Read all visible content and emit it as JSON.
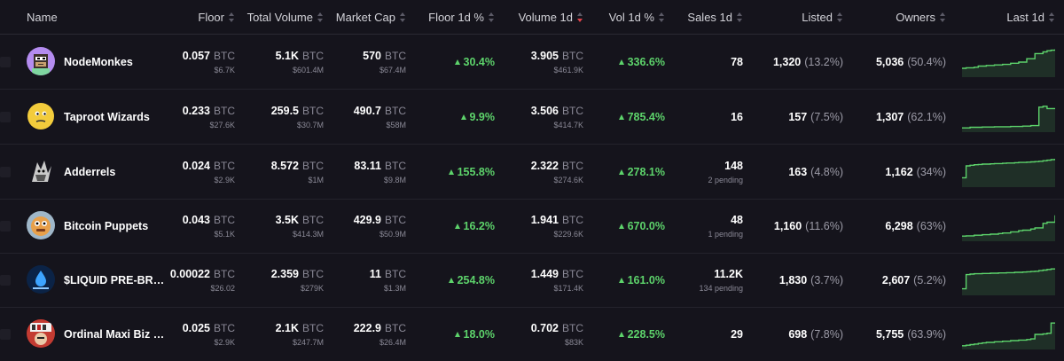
{
  "headers": {
    "name": "Name",
    "floor": "Floor",
    "total_volume": "Total Volume",
    "market_cap": "Market Cap",
    "floor_1d": "Floor 1d %",
    "volume_1d": "Volume 1d",
    "vol_1d": "Vol 1d %",
    "sales_1d": "Sales 1d",
    "listed": "Listed",
    "owners": "Owners",
    "last_1d": "Last 1d"
  },
  "unit": "BTC",
  "colors": {
    "positive": "#5dd36b",
    "sort_active": "#e0434b",
    "background": "#15141c"
  },
  "rows": [
    {
      "name": "NodeMonkes",
      "avatar": "pixel-monkey-avatar",
      "floor": "0.057",
      "floor_usd": "$6.7K",
      "total_volume": "5.1K",
      "total_volume_usd": "$601.4M",
      "market_cap": "570",
      "market_cap_usd": "$67.4M",
      "floor_pct": "30.4%",
      "volume_1d": "3.905",
      "volume_1d_usd": "$461.9K",
      "vol_pct": "336.6%",
      "sales": "78",
      "sales_pending": "",
      "listed": "1,320",
      "listed_pct": "(13.2%)",
      "owners": "5,036",
      "owners_pct": "(50.4%)",
      "spark": [
        0.28,
        0.3,
        0.3,
        0.32,
        0.36,
        0.36,
        0.38,
        0.38,
        0.4,
        0.4,
        0.42,
        0.42,
        0.46,
        0.46,
        0.5,
        0.5,
        0.62,
        0.62,
        0.8,
        0.8,
        0.86,
        0.9,
        0.92,
        0.95
      ]
    },
    {
      "name": "Taproot Wizards",
      "avatar": "wizard-face-avatar",
      "floor": "0.233",
      "floor_usd": "$27.6K",
      "total_volume": "259.5",
      "total_volume_usd": "$30.7M",
      "market_cap": "490.7",
      "market_cap_usd": "$58M",
      "floor_pct": "9.9%",
      "volume_1d": "3.506",
      "volume_1d_usd": "$414.7K",
      "vol_pct": "785.4%",
      "sales": "16",
      "sales_pending": "",
      "listed": "157",
      "listed_pct": "(7.5%)",
      "owners": "1,307",
      "owners_pct": "(62.1%)",
      "spark": [
        0.12,
        0.12,
        0.14,
        0.14,
        0.14,
        0.15,
        0.15,
        0.15,
        0.16,
        0.16,
        0.16,
        0.16,
        0.17,
        0.17,
        0.17,
        0.18,
        0.18,
        0.2,
        0.2,
        0.85,
        0.88,
        0.8,
        0.8,
        0.82
      ]
    },
    {
      "name": "Adderrels",
      "avatar": "adder-creature-avatar",
      "floor": "0.024",
      "floor_usd": "$2.9K",
      "total_volume": "8.572",
      "total_volume_usd": "$1M",
      "market_cap": "83.11",
      "market_cap_usd": "$9.8M",
      "floor_pct": "155.8%",
      "volume_1d": "2.322",
      "volume_1d_usd": "$274.6K",
      "vol_pct": "278.1%",
      "sales": "148",
      "sales_pending": "2 pending",
      "listed": "163",
      "listed_pct": "(4.8%)",
      "owners": "1,162",
      "owners_pct": "(34%)",
      "spark": [
        0.3,
        0.72,
        0.74,
        0.76,
        0.77,
        0.78,
        0.78,
        0.79,
        0.8,
        0.8,
        0.81,
        0.82,
        0.82,
        0.83,
        0.84,
        0.84,
        0.85,
        0.86,
        0.87,
        0.88,
        0.9,
        0.92,
        0.94,
        0.97
      ]
    },
    {
      "name": "Bitcoin Puppets",
      "avatar": "puppet-face-avatar",
      "floor": "0.043",
      "floor_usd": "$5.1K",
      "total_volume": "3.5K",
      "total_volume_usd": "$414.3M",
      "market_cap": "429.9",
      "market_cap_usd": "$50.9M",
      "floor_pct": "16.2%",
      "volume_1d": "1.941",
      "volume_1d_usd": "$229.6K",
      "vol_pct": "670.0%",
      "sales": "48",
      "sales_pending": "1 pending",
      "listed": "1,160",
      "listed_pct": "(11.6%)",
      "owners": "6,298",
      "owners_pct": "(63%)",
      "spark": [
        0.15,
        0.16,
        0.16,
        0.18,
        0.18,
        0.2,
        0.2,
        0.22,
        0.22,
        0.24,
        0.26,
        0.26,
        0.3,
        0.3,
        0.34,
        0.36,
        0.36,
        0.4,
        0.44,
        0.44,
        0.6,
        0.64,
        0.64,
        0.88
      ]
    },
    {
      "name": "$LIQUID PRE-BR…",
      "avatar": "liquid-drop-logo",
      "floor": "0.00022",
      "floor_usd": "$26.02",
      "total_volume": "2.359",
      "total_volume_usd": "$279K",
      "market_cap": "11",
      "market_cap_usd": "$1.3M",
      "floor_pct": "254.8%",
      "volume_1d": "1.449",
      "volume_1d_usd": "$171.4K",
      "vol_pct": "161.0%",
      "sales": "11.2K",
      "sales_pending": "134 pending",
      "listed": "1,830",
      "listed_pct": "(3.7%)",
      "owners": "2,607",
      "owners_pct": "(5.2%)",
      "spark": [
        0.2,
        0.7,
        0.72,
        0.73,
        0.73,
        0.74,
        0.74,
        0.75,
        0.75,
        0.76,
        0.76,
        0.77,
        0.77,
        0.78,
        0.78,
        0.79,
        0.8,
        0.81,
        0.82,
        0.84,
        0.86,
        0.88,
        0.9,
        0.92
      ]
    },
    {
      "name": "Ordinal Maxi Biz …",
      "avatar": "maxi-biz-avatar",
      "floor": "0.025",
      "floor_usd": "$2.9K",
      "total_volume": "2.1K",
      "total_volume_usd": "$247.7M",
      "market_cap": "222.9",
      "market_cap_usd": "$26.4M",
      "floor_pct": "18.0%",
      "volume_1d": "0.702",
      "volume_1d_usd": "$83K",
      "vol_pct": "228.5%",
      "sales": "29",
      "sales_pending": "",
      "listed": "698",
      "listed_pct": "(7.8%)",
      "owners": "5,755",
      "owners_pct": "(63.9%)",
      "spark": [
        0.1,
        0.12,
        0.14,
        0.16,
        0.18,
        0.2,
        0.22,
        0.22,
        0.24,
        0.24,
        0.26,
        0.26,
        0.28,
        0.28,
        0.3,
        0.3,
        0.32,
        0.34,
        0.5,
        0.5,
        0.52,
        0.54,
        0.9,
        0.92
      ]
    }
  ]
}
